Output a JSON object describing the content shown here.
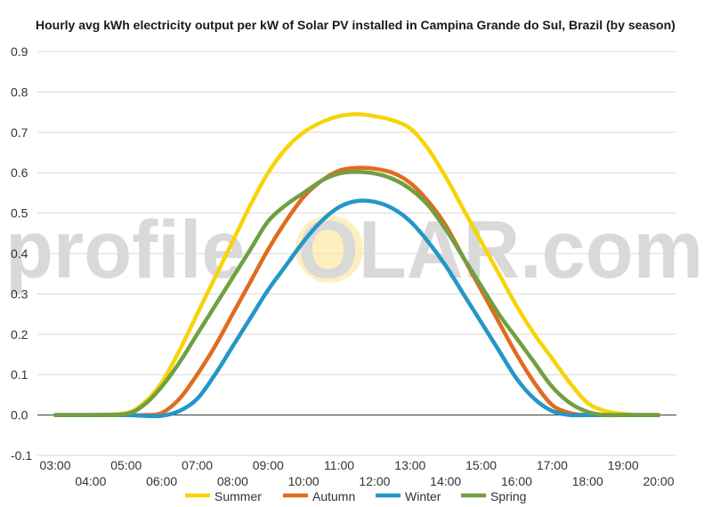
{
  "watermark": {
    "before": "profile",
    "sun_letter": "S",
    "after": "OLAR.com",
    "color": "#d9d9d9",
    "sun_color": "#fde9a8"
  },
  "chart_data": {
    "type": "line",
    "title": "Hourly avg kWh electricity output per kW of Solar PV installed in Campina Grande do Sul, Brazil (by season)",
    "xlabel": "",
    "ylabel": "",
    "ylim": [
      -0.1,
      0.9
    ],
    "yticks": [
      "-0.1",
      "0.0",
      "0.1",
      "0.2",
      "0.3",
      "0.4",
      "0.5",
      "0.6",
      "0.7",
      "0.8",
      "0.9"
    ],
    "xlim": [
      3,
      20
    ],
    "xticks": [
      "03:00",
      "04:00",
      "05:00",
      "06:00",
      "07:00",
      "08:00",
      "09:00",
      "10:00",
      "11:00",
      "12:00",
      "13:00",
      "14:00",
      "15:00",
      "16:00",
      "17:00",
      "18:00",
      "19:00",
      "20:00"
    ],
    "grid": true,
    "legend": "bottom",
    "series": [
      {
        "name": "Summer",
        "color": "#f7d408",
        "x": [
          3,
          4,
          5,
          5.5,
          6,
          6.5,
          7,
          7.5,
          8,
          8.5,
          9,
          9.5,
          10,
          10.5,
          11,
          11.5,
          12,
          12.5,
          13,
          13.5,
          14,
          14.5,
          15,
          15.5,
          16,
          16.5,
          17,
          17.5,
          18,
          18.5,
          19,
          19.5,
          20
        ],
        "y": [
          0,
          0,
          0.005,
          0.03,
          0.08,
          0.16,
          0.25,
          0.34,
          0.43,
          0.52,
          0.6,
          0.66,
          0.7,
          0.725,
          0.74,
          0.745,
          0.74,
          0.73,
          0.71,
          0.66,
          0.59,
          0.51,
          0.43,
          0.35,
          0.27,
          0.2,
          0.14,
          0.08,
          0.03,
          0.01,
          0.003,
          0,
          0
        ]
      },
      {
        "name": "Autumn",
        "color": "#e06c1f",
        "x": [
          3,
          4,
          5,
          5.5,
          6,
          6.5,
          7,
          7.5,
          8,
          8.5,
          9,
          9.5,
          10,
          10.5,
          11,
          11.5,
          12,
          12.5,
          13,
          13.5,
          14,
          14.5,
          15,
          15.5,
          16,
          16.5,
          17,
          17.5,
          18,
          18.5,
          19,
          19.5,
          20
        ],
        "y": [
          0,
          0,
          0,
          0,
          0.005,
          0.04,
          0.1,
          0.17,
          0.25,
          0.33,
          0.41,
          0.48,
          0.54,
          0.58,
          0.605,
          0.612,
          0.61,
          0.6,
          0.575,
          0.53,
          0.47,
          0.39,
          0.31,
          0.23,
          0.15,
          0.08,
          0.025,
          0.005,
          0,
          0,
          0,
          0,
          0
        ]
      },
      {
        "name": "Winter",
        "color": "#2496c8",
        "x": [
          3,
          4,
          5,
          5.5,
          6,
          6.5,
          7,
          7.5,
          8,
          8.5,
          9,
          9.5,
          10,
          10.5,
          11,
          11.5,
          12,
          12.5,
          13,
          13.5,
          14,
          14.5,
          15,
          15.5,
          16,
          16.5,
          17,
          17.5,
          18,
          18.5,
          19,
          19.5,
          20
        ],
        "y": [
          0,
          0,
          0,
          -0.002,
          -0.002,
          0.01,
          0.04,
          0.1,
          0.17,
          0.24,
          0.31,
          0.37,
          0.43,
          0.48,
          0.515,
          0.53,
          0.528,
          0.512,
          0.48,
          0.43,
          0.37,
          0.3,
          0.23,
          0.16,
          0.09,
          0.04,
          0.01,
          0,
          0,
          0,
          0,
          0,
          0
        ]
      },
      {
        "name": "Spring",
        "color": "#70a040",
        "x": [
          3,
          4,
          5,
          5.5,
          6,
          6.5,
          7,
          7.5,
          8,
          8.5,
          9,
          9.5,
          10,
          10.5,
          11,
          11.5,
          12,
          12.5,
          13,
          13.5,
          14,
          14.5,
          15,
          15.5,
          16,
          16.5,
          17,
          17.5,
          18,
          18.5,
          19,
          19.5,
          20
        ],
        "y": [
          0,
          0,
          0.003,
          0.025,
          0.07,
          0.13,
          0.2,
          0.27,
          0.34,
          0.41,
          0.48,
          0.52,
          0.55,
          0.58,
          0.598,
          0.602,
          0.598,
          0.585,
          0.56,
          0.52,
          0.46,
          0.39,
          0.32,
          0.25,
          0.19,
          0.13,
          0.07,
          0.03,
          0.008,
          0,
          0,
          0,
          0
        ]
      }
    ]
  }
}
